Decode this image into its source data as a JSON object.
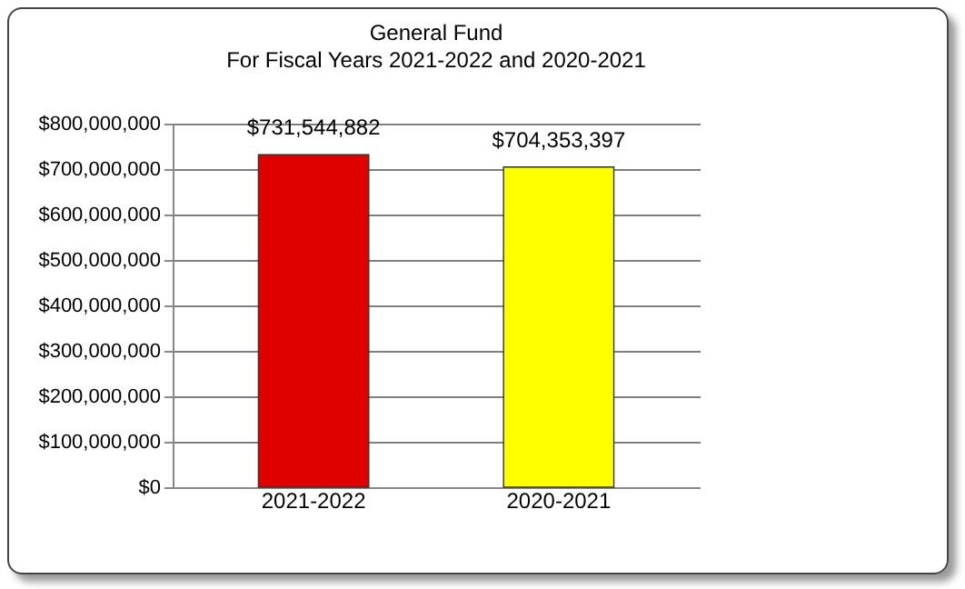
{
  "chart_data": {
    "type": "bar",
    "title": "General Fund",
    "subtitle": "For Fiscal Years 2021-2022 and 2020-2021",
    "categories": [
      "2021-2022",
      "2020-2021"
    ],
    "values": [
      731544882,
      704353397
    ],
    "colors": [
      "#e00000",
      "#ffff00"
    ],
    "value_labels": [
      "$731,544,882",
      "$704,353,397"
    ],
    "ylim": [
      0,
      800000000
    ],
    "yticks": [
      {
        "value": 0,
        "label": "$0"
      },
      {
        "value": 100000000,
        "label": "$100,000,000"
      },
      {
        "value": 200000000,
        "label": "$200,000,000"
      },
      {
        "value": 300000000,
        "label": "$300,000,000"
      },
      {
        "value": 400000000,
        "label": "$400,000,000"
      },
      {
        "value": 500000000,
        "label": "$500,000,000"
      },
      {
        "value": 600000000,
        "label": "$600,000,000"
      },
      {
        "value": 700000000,
        "label": "$700,000,000"
      },
      {
        "value": 800000000,
        "label": "$800,000,000"
      }
    ],
    "grid": "y"
  }
}
